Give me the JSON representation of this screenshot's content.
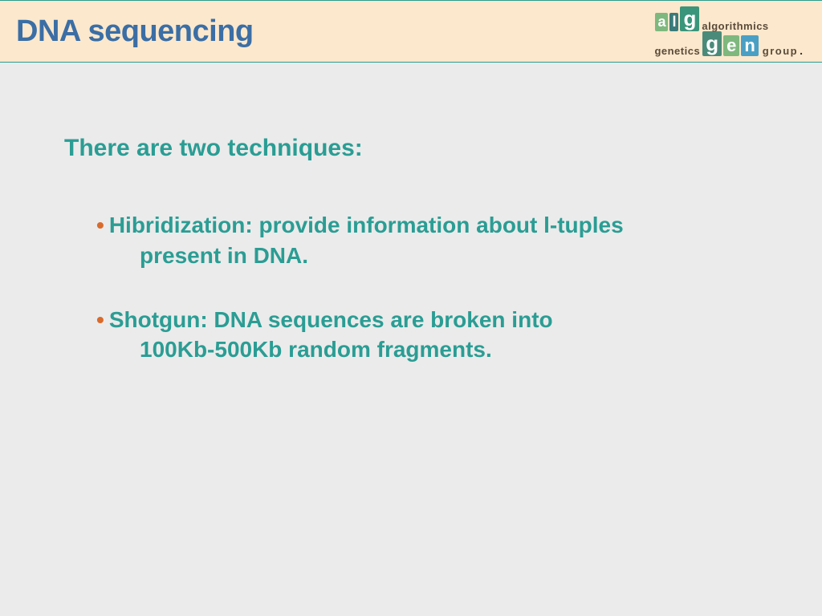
{
  "colors": {
    "header_bg": "#fce8cc",
    "header_border": "#2a9d8f",
    "title_color": "#3b6ea5",
    "body_bg": "#ebebeb",
    "text_color": "#2a9d94",
    "bullet_dot_color": "#d96b2b"
  },
  "header": {
    "title": "DNA sequencing",
    "logo": {
      "top_word": "algorithmics",
      "mid_word": "genetics",
      "bot_word": "group",
      "letters_top": [
        "a",
        "l",
        "g"
      ],
      "letters_bot": [
        "g",
        "e",
        "n"
      ]
    }
  },
  "content": {
    "intro": "There are two techniques:",
    "bullets": [
      {
        "dot": "•",
        "line1": "Hibridization: provide information about l-tuples",
        "line2": "present in DNA."
      },
      {
        "dot": "•",
        "line1": "Shotgun: DNA sequences are broken into",
        "line2": "100Kb-500Kb random fragments."
      }
    ]
  }
}
